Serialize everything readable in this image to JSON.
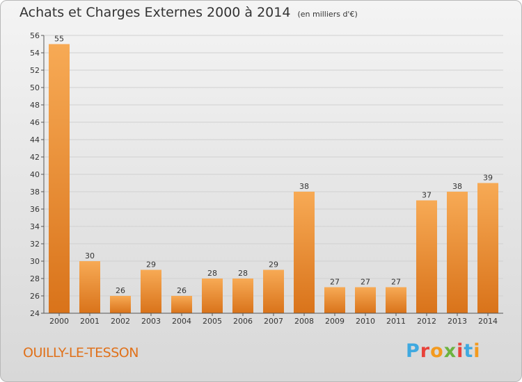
{
  "header": {
    "title": "Achats et Charges Externes 2000 à 2014",
    "unit": "(en milliers d'€)"
  },
  "footer": {
    "commune": "OUILLY-LE-TESSON",
    "brand": "Proxiti",
    "brand_colors": [
      "#3fa9e0",
      "#e8423a",
      "#f39a1e",
      "#6cb33f",
      "#e8423a",
      "#3fa9e0",
      "#f39a1e"
    ]
  },
  "colors": {
    "bar_light": "#f7aa55",
    "bar_dark": "#d9731a",
    "grid": "#d0d0d0",
    "text": "#333333",
    "commune": "#e0711a"
  },
  "chart_data": {
    "type": "bar",
    "title": "Achats et Charges Externes 2000 à 2014",
    "subtitle": "(en milliers d'€)",
    "categories": [
      "2000",
      "2001",
      "2002",
      "2003",
      "2004",
      "2005",
      "2006",
      "2007",
      "2008",
      "2009",
      "2010",
      "2011",
      "2012",
      "2013",
      "2014"
    ],
    "values": [
      55,
      30,
      26,
      29,
      26,
      28,
      28,
      29,
      38,
      27,
      27,
      27,
      37,
      38,
      39
    ],
    "data_labels": [
      "55",
      "30",
      "26",
      "29",
      "26",
      "28",
      "28",
      "29",
      "38",
      "27",
      "27",
      "27",
      "37",
      "38",
      "39"
    ],
    "y_ticks": [
      "24",
      "26",
      "28",
      "30",
      "32",
      "34",
      "36",
      "38",
      "40",
      "42",
      "44",
      "46",
      "48",
      "50",
      "52",
      "54",
      "56"
    ],
    "ylim": [
      24,
      56
    ],
    "grid": true,
    "xlabel": "",
    "ylabel": ""
  }
}
